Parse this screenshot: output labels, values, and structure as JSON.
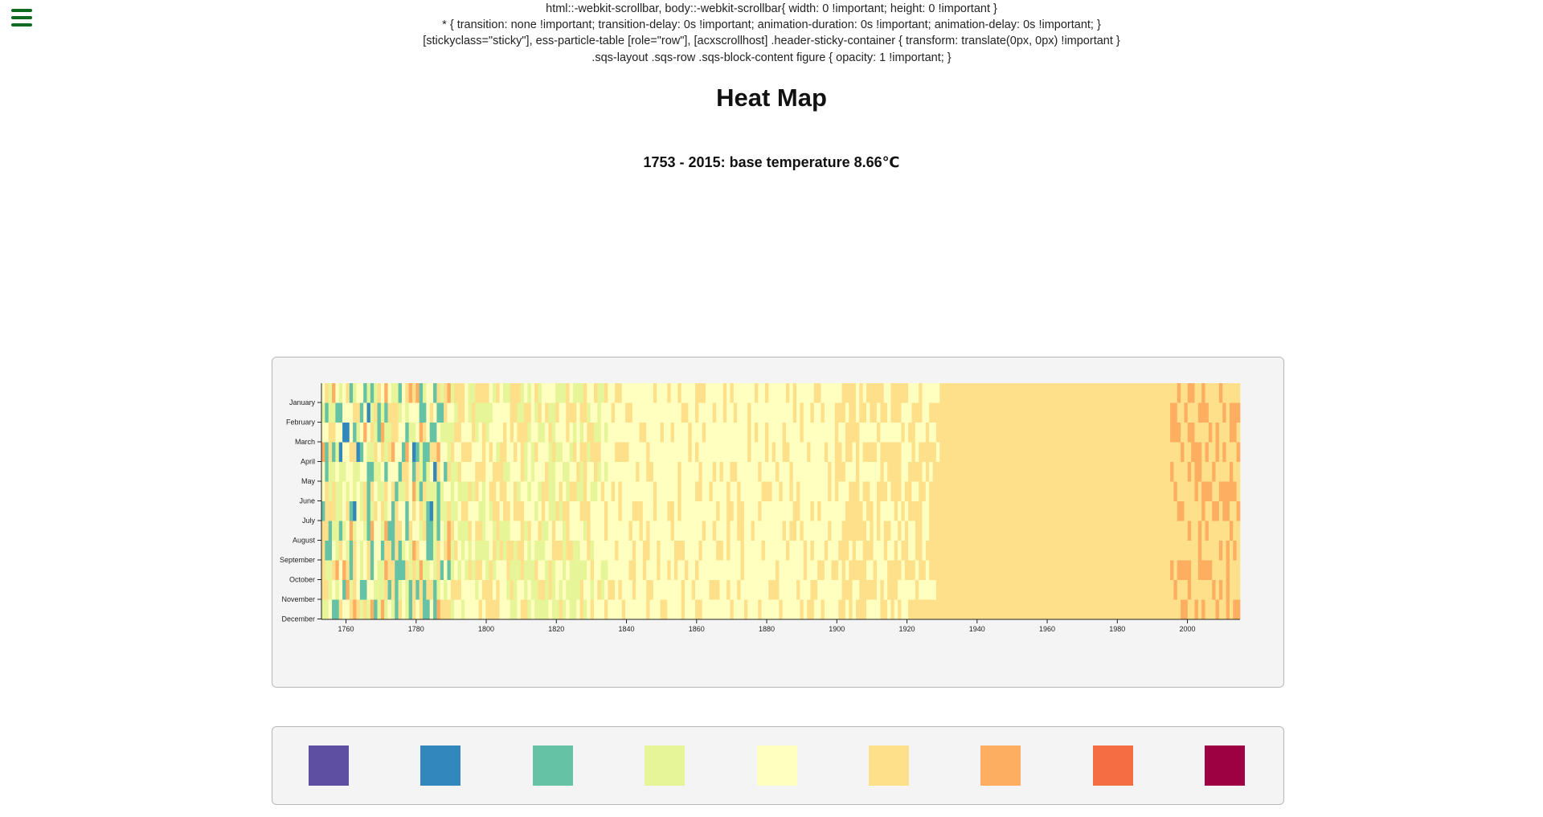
{
  "css_dump_lines": [
    "html::-webkit-scrollbar, body::-webkit-scrollbar{ width: 0 !important; height: 0 !important }",
    "* { transition: none !important; transition-delay: 0s !important; animation-duration: 0s !important; animation-delay: 0s !important; }",
    "[stickyclass=\"sticky\"], ess-particle-table [role=\"row\"], [acxscrollhost] .header-sticky-container { transform: translate(0px, 0px) !important }",
    ".sqs-layout .sqs-row .sqs-block-content figure { opacity: 1 !important; }"
  ],
  "menu": {
    "icon": "hamburger-menu-icon",
    "color": "#0f6b1f"
  },
  "title": "Heat Map",
  "subtitle": "1753 - 2015: base temperature 8.66℃",
  "chart_data": {
    "type": "heatmap",
    "title": "Heat Map",
    "subtitle": "1753 - 2015: base temperature 8.66℃",
    "base_temperature": 8.66,
    "x_range": [
      1753,
      2015
    ],
    "x_ticks": [
      1760,
      1780,
      1800,
      1820,
      1840,
      1860,
      1880,
      1900,
      1920,
      1940,
      1960,
      1980,
      2000
    ],
    "y_categories": [
      "January",
      "February",
      "March",
      "April",
      "May",
      "June",
      "July",
      "August",
      "September",
      "October",
      "November",
      "December"
    ],
    "grid": false,
    "color_bins": [
      "#5e4fa2",
      "#3288bd",
      "#66c2a5",
      "#e6f598",
      "#ffffbf",
      "#fee08b",
      "#fdae61",
      "#f46d43",
      "#9e0142"
    ],
    "legend_position": "bottom"
  }
}
